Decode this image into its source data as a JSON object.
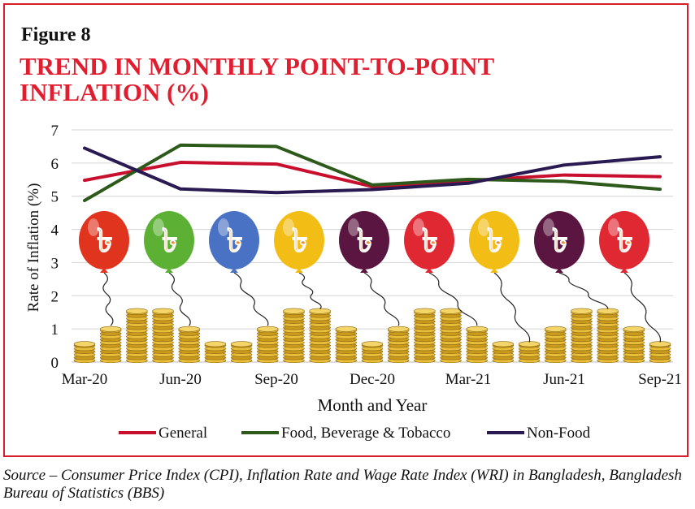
{
  "figure_label": "Figure 8",
  "title": "TREND IN MONTHLY POINT-TO-POINT INFLATION (%)",
  "source_text": "Source – Consumer Price Index (CPI), Inflation Rate and Wage Rate Index (WRI) in Bangladesh, Bangladesh Bureau of Statistics (BBS)",
  "taka_symbol": "৳",
  "balloon_colors": [
    "#e1341e",
    "#5cb135",
    "#4a72c4",
    "#f2be16",
    "#5a1640",
    "#e02832",
    "#f2be16",
    "#5a1640",
    "#e02832"
  ],
  "coin_stacks": [
    0.5,
    1.0,
    1.5,
    1.5,
    1.0,
    0.5,
    0.5,
    1.0,
    1.5,
    1.5,
    1.0,
    0.5,
    1.0,
    1.5,
    1.5,
    1.0,
    0.5,
    0.5,
    1.0,
    1.5,
    1.5,
    1.0,
    0.5
  ],
  "chart_data": {
    "type": "line",
    "title": "TREND IN MONTHLY POINT-TO-POINT INFLATION (%)",
    "xlabel": "Month and Year",
    "ylabel": "Rate of Inflation (%)",
    "ylim": [
      0,
      7
    ],
    "yticks": [
      "0",
      "1",
      "2",
      "3",
      "4",
      "5",
      "6",
      "7"
    ],
    "categories": [
      "Mar-20",
      "Jun-20",
      "Sep-20",
      "Dec-20",
      "Mar-21",
      "Jun-21",
      "Sep-21"
    ],
    "grid": true,
    "legend_position": "bottom",
    "series": [
      {
        "name": "General",
        "color": "#c8102e",
        "values": [
          5.48,
          6.02,
          5.97,
          5.29,
          5.47,
          5.64,
          5.59
        ]
      },
      {
        "name": "Food, Beverage & Tobacco",
        "color": "#2d5a1b",
        "values": [
          4.87,
          6.54,
          6.5,
          5.34,
          5.51,
          5.45,
          5.21
        ]
      },
      {
        "name": "Non-Food",
        "color": "#2a1a52",
        "values": [
          6.45,
          5.22,
          5.11,
          5.2,
          5.39,
          5.94,
          6.19
        ]
      }
    ]
  }
}
